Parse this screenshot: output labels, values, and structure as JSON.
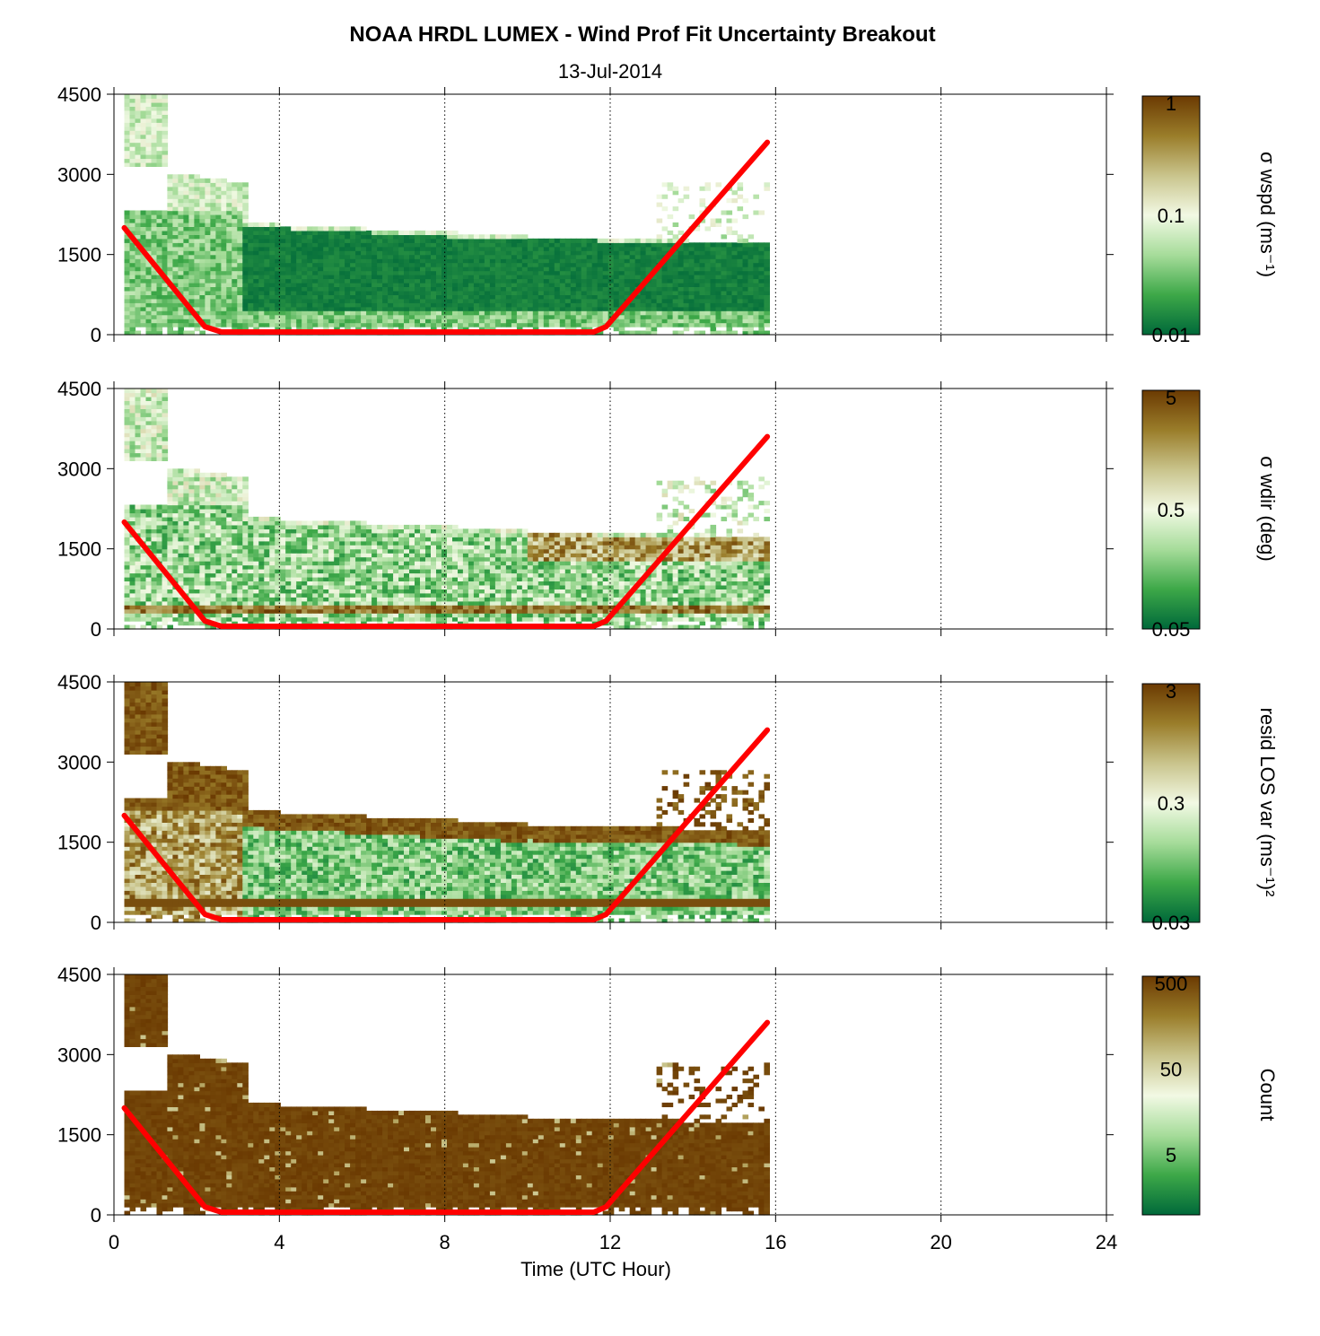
{
  "figure": {
    "title": "NOAA HRDL LUMEX - Wind Prof Fit Uncertainty Breakout",
    "subtitle": "13-Jul-2014"
  },
  "chart_data": [
    {
      "type": "heatmap",
      "name": "sigma-wspd",
      "colorbar_label": "σ wspd (ms⁻¹)",
      "colorbar_ticks": [
        "1",
        "0.1",
        "0.01"
      ],
      "colorbar_tick_values": [
        1,
        0.1,
        0.01
      ],
      "colorbar_scale": "log",
      "colorbar_range": [
        0.01,
        1
      ],
      "yticks": [
        "4500",
        "3000",
        "1500",
        "0"
      ],
      "ylim": [
        0,
        4500
      ],
      "xlim": [
        0,
        24
      ],
      "fill_mode": "wspd"
    },
    {
      "type": "heatmap",
      "name": "sigma-wdir",
      "colorbar_label": "σ wdir (deg)",
      "colorbar_ticks": [
        "5",
        "0.5",
        "0.05"
      ],
      "colorbar_tick_values": [
        5,
        0.5,
        0.05
      ],
      "colorbar_scale": "log",
      "colorbar_range": [
        0.05,
        5
      ],
      "yticks": [
        "4500",
        "3000",
        "1500",
        "0"
      ],
      "ylim": [
        0,
        4500
      ],
      "xlim": [
        0,
        24
      ],
      "fill_mode": "wdir"
    },
    {
      "type": "heatmap",
      "name": "resid-los-var",
      "colorbar_label": "resid LOS var (ms⁻¹)²",
      "colorbar_ticks": [
        "3",
        "0.3",
        "0.03"
      ],
      "colorbar_tick_values": [
        3,
        0.3,
        0.03
      ],
      "colorbar_scale": "log",
      "colorbar_range": [
        0.03,
        3
      ],
      "yticks": [
        "4500",
        "3000",
        "1500",
        "0"
      ],
      "ylim": [
        0,
        4500
      ],
      "xlim": [
        0,
        24
      ],
      "fill_mode": "resid"
    },
    {
      "type": "heatmap",
      "name": "count",
      "colorbar_label": "Count",
      "colorbar_ticks": [
        "500",
        "50",
        "5"
      ],
      "colorbar_tick_values": [
        500,
        50,
        5
      ],
      "colorbar_scale": "log",
      "colorbar_range": [
        1,
        600
      ],
      "yticks": [
        "4500",
        "3000",
        "1500",
        "0"
      ],
      "ylim": [
        0,
        4500
      ],
      "xlim": [
        0,
        24
      ],
      "fill_mode": "count",
      "xticks": [
        "0",
        "4",
        "8",
        "12",
        "16",
        "20",
        "24"
      ],
      "xlabel": "Time (UTC Hour)"
    }
  ],
  "overlay_line": {
    "color": "#ff0000",
    "x": [
      0.25,
      2.2,
      2.6,
      11.6,
      11.9,
      15.8
    ],
    "y": [
      2000,
      150,
      50,
      50,
      150,
      3600
    ]
  },
  "colormap": {
    "stops": [
      "#00693a",
      "#3da848",
      "#a6dc9a",
      "#f2f9e4",
      "#c9c48c",
      "#9a7d2a",
      "#6b3a02"
    ]
  },
  "grid": {
    "x_dotted": [
      4,
      8,
      12,
      16,
      20,
      24
    ]
  }
}
